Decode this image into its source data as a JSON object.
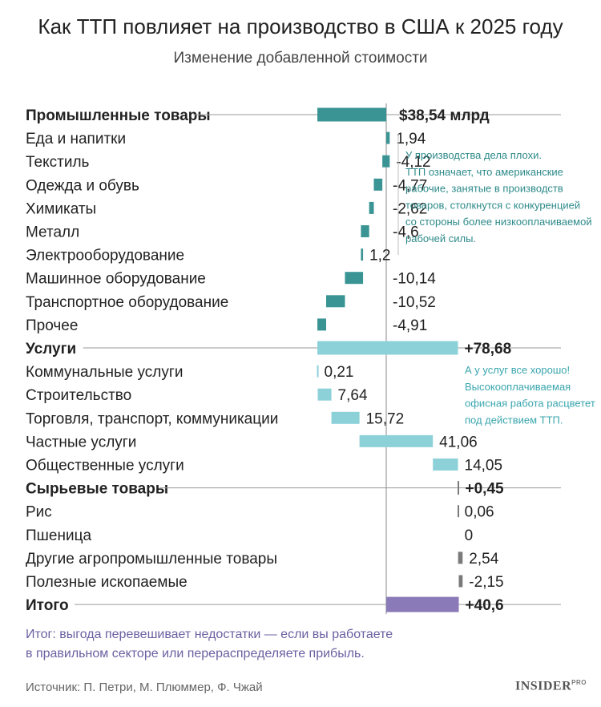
{
  "title": "Как ТТП повлияет на производство в США к 2025 году",
  "subtitle": "Изменение добавленной стоимости",
  "chart_data": {
    "type": "bar",
    "orientation": "horizontal waterfall",
    "title": "Как ТТП повлияет на производство в США к 2025 году",
    "subtitle": "Изменение добавленной стоимости",
    "unit": "млрд $",
    "rows": [
      {
        "label": "Промышленные товары",
        "value": -38.54,
        "value_label": "$38,54 млрд",
        "kind": "group",
        "group": "industry"
      },
      {
        "label": "Еда и напитки",
        "value": 1.94,
        "value_label": "1,94",
        "kind": "item",
        "group": "industry"
      },
      {
        "label": "Текстиль",
        "value": -4.12,
        "value_label": "-4,12",
        "kind": "item",
        "group": "industry"
      },
      {
        "label": "Одежда и обувь",
        "value": -4.77,
        "value_label": "-4,77",
        "kind": "item",
        "group": "industry"
      },
      {
        "label": "Химикаты",
        "value": -2.62,
        "value_label": "-2,62",
        "kind": "item",
        "group": "industry"
      },
      {
        "label": "Металл",
        "value": -4.6,
        "value_label": "-4,6",
        "kind": "item",
        "group": "industry"
      },
      {
        "label": "Электрооборудование",
        "value": 1.2,
        "value_label": "1,2",
        "kind": "item",
        "group": "industry"
      },
      {
        "label": "Машинное оборудование",
        "value": -10.14,
        "value_label": "-10,14",
        "kind": "item",
        "group": "industry"
      },
      {
        "label": "Транспортное оборудование",
        "value": -10.52,
        "value_label": "-10,52",
        "kind": "item",
        "group": "industry"
      },
      {
        "label": "Прочее",
        "value": -4.91,
        "value_label": "-4,91",
        "kind": "item",
        "group": "industry"
      },
      {
        "label": "Услуги",
        "value": 78.68,
        "value_label": "+78,68",
        "kind": "group",
        "group": "services"
      },
      {
        "label": "Коммунальные услуги",
        "value": 0.21,
        "value_label": "0,21",
        "kind": "item",
        "group": "services"
      },
      {
        "label": "Строительство",
        "value": 7.64,
        "value_label": "7,64",
        "kind": "item",
        "group": "services"
      },
      {
        "label": "Торговля, транспорт, коммуникации",
        "value": 15.72,
        "value_label": "15,72",
        "kind": "item",
        "group": "services"
      },
      {
        "label": "Частные услуги",
        "value": 41.06,
        "value_label": "41,06",
        "kind": "item",
        "group": "services"
      },
      {
        "label": "Общественные услуги",
        "value": 14.05,
        "value_label": "14,05",
        "kind": "item",
        "group": "services"
      },
      {
        "label": "Сырьевые товары",
        "value": 0.45,
        "value_label": "+0,45",
        "kind": "group",
        "group": "raw"
      },
      {
        "label": "Рис",
        "value": 0.06,
        "value_label": "0,06",
        "kind": "item",
        "group": "raw"
      },
      {
        "label": "Пшеница",
        "value": 0,
        "value_label": "0",
        "kind": "item",
        "group": "raw"
      },
      {
        "label": "Другие агропромышленные товары",
        "value": 2.54,
        "value_label": "2,54",
        "kind": "item",
        "group": "raw"
      },
      {
        "label": "Полезные ископаемые",
        "value": -2.15,
        "value_label": "-2,15",
        "kind": "item",
        "group": "raw"
      },
      {
        "label": "Итого",
        "value": 40.6,
        "value_label": "+40,6",
        "kind": "total",
        "group": "total"
      }
    ],
    "colors": {
      "industry": "#3a9494",
      "services": "#8dd1d8",
      "raw": "#7a7a7a",
      "total": "#8a7ab8"
    },
    "annotations": [
      {
        "group": "industry",
        "lines": [
          "У производства дела плохи.",
          "ТТП означает, что американские",
          "рабочие, занятые в производств",
          "товаров, столкнутся с конкуренцией",
          "со стороны более низкооплачиваемой",
          "рабочей силы."
        ]
      },
      {
        "group": "services",
        "lines": [
          "А у услуг все хорошо!",
          "Высокооплачиваемая",
          "офисная работа расцветет",
          "под действием ТТП."
        ]
      }
    ]
  },
  "conclusion": "Итог: выгода перевешивает недостатки — если вы работаете в правильном секторе или перераспределяете прибыль.",
  "source": "Источник: П. Петри, М. Плюммер, Ф. Чжай",
  "logo": {
    "main": "INSIDER",
    "sup": "PRO"
  }
}
